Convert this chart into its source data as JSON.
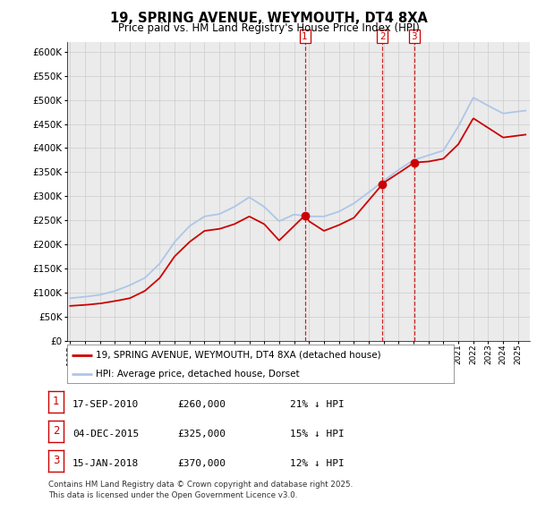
{
  "title": "19, SPRING AVENUE, WEYMOUTH, DT4 8XA",
  "subtitle": "Price paid vs. HM Land Registry's House Price Index (HPI)",
  "hpi_color": "#aec6e8",
  "price_color": "#cc0000",
  "marker_color": "#cc0000",
  "vline_color": "#cc0000",
  "grid_color": "#cccccc",
  "bg_color": "#ffffff",
  "panel_bg": "#ebebeb",
  "ylim": [
    0,
    620000
  ],
  "yticks": [
    0,
    50000,
    100000,
    150000,
    200000,
    250000,
    300000,
    350000,
    400000,
    450000,
    500000,
    550000,
    600000
  ],
  "transactions": [
    {
      "label": "1",
      "date_str": "17-SEP-2010",
      "date_num": 2010.72,
      "price": 260000,
      "pct": "21% ↓ HPI"
    },
    {
      "label": "2",
      "date_str": "04-DEC-2015",
      "date_num": 2015.92,
      "price": 325000,
      "pct": "15% ↓ HPI"
    },
    {
      "label": "3",
      "date_str": "15-JAN-2018",
      "date_num": 2018.04,
      "price": 370000,
      "pct": "12% ↓ HPI"
    }
  ],
  "legend_entries": [
    "19, SPRING AVENUE, WEYMOUTH, DT4 8XA (detached house)",
    "HPI: Average price, detached house, Dorset"
  ],
  "footer": "Contains HM Land Registry data © Crown copyright and database right 2025.\nThis data is licensed under the Open Government Licence v3.0.",
  "xmin": 1994.8,
  "xmax": 2025.8,
  "hpi_knots": [
    [
      1995,
      88000
    ],
    [
      1996,
      91000
    ],
    [
      1997,
      95000
    ],
    [
      1998,
      103000
    ],
    [
      1999,
      115000
    ],
    [
      2000,
      130000
    ],
    [
      2001,
      160000
    ],
    [
      2002,
      205000
    ],
    [
      2003,
      238000
    ],
    [
      2004,
      258000
    ],
    [
      2005,
      263000
    ],
    [
      2006,
      278000
    ],
    [
      2007,
      298000
    ],
    [
      2008,
      278000
    ],
    [
      2009,
      248000
    ],
    [
      2010,
      262000
    ],
    [
      2011,
      258000
    ],
    [
      2012,
      258000
    ],
    [
      2013,
      268000
    ],
    [
      2014,
      285000
    ],
    [
      2015,
      308000
    ],
    [
      2016,
      332000
    ],
    [
      2017,
      355000
    ],
    [
      2018,
      375000
    ],
    [
      2019,
      385000
    ],
    [
      2020,
      395000
    ],
    [
      2021,
      445000
    ],
    [
      2022,
      505000
    ],
    [
      2023,
      488000
    ],
    [
      2024,
      472000
    ],
    [
      2025.5,
      478000
    ]
  ],
  "price_knots": [
    [
      1995,
      72000
    ],
    [
      1996,
      74000
    ],
    [
      1997,
      77000
    ],
    [
      1998,
      82000
    ],
    [
      1999,
      88000
    ],
    [
      2000,
      103000
    ],
    [
      2001,
      130000
    ],
    [
      2002,
      175000
    ],
    [
      2003,
      205000
    ],
    [
      2004,
      228000
    ],
    [
      2005,
      232000
    ],
    [
      2006,
      242000
    ],
    [
      2007,
      258000
    ],
    [
      2008,
      242000
    ],
    [
      2009,
      208000
    ],
    [
      2010.72,
      260000
    ],
    [
      2011,
      248000
    ],
    [
      2012,
      228000
    ],
    [
      2013,
      240000
    ],
    [
      2014,
      255000
    ],
    [
      2015.92,
      325000
    ],
    [
      2016,
      328000
    ],
    [
      2017,
      348000
    ],
    [
      2018.04,
      370000
    ],
    [
      2019,
      372000
    ],
    [
      2020,
      378000
    ],
    [
      2021,
      408000
    ],
    [
      2022,
      462000
    ],
    [
      2023,
      442000
    ],
    [
      2024,
      422000
    ],
    [
      2025.5,
      428000
    ]
  ]
}
